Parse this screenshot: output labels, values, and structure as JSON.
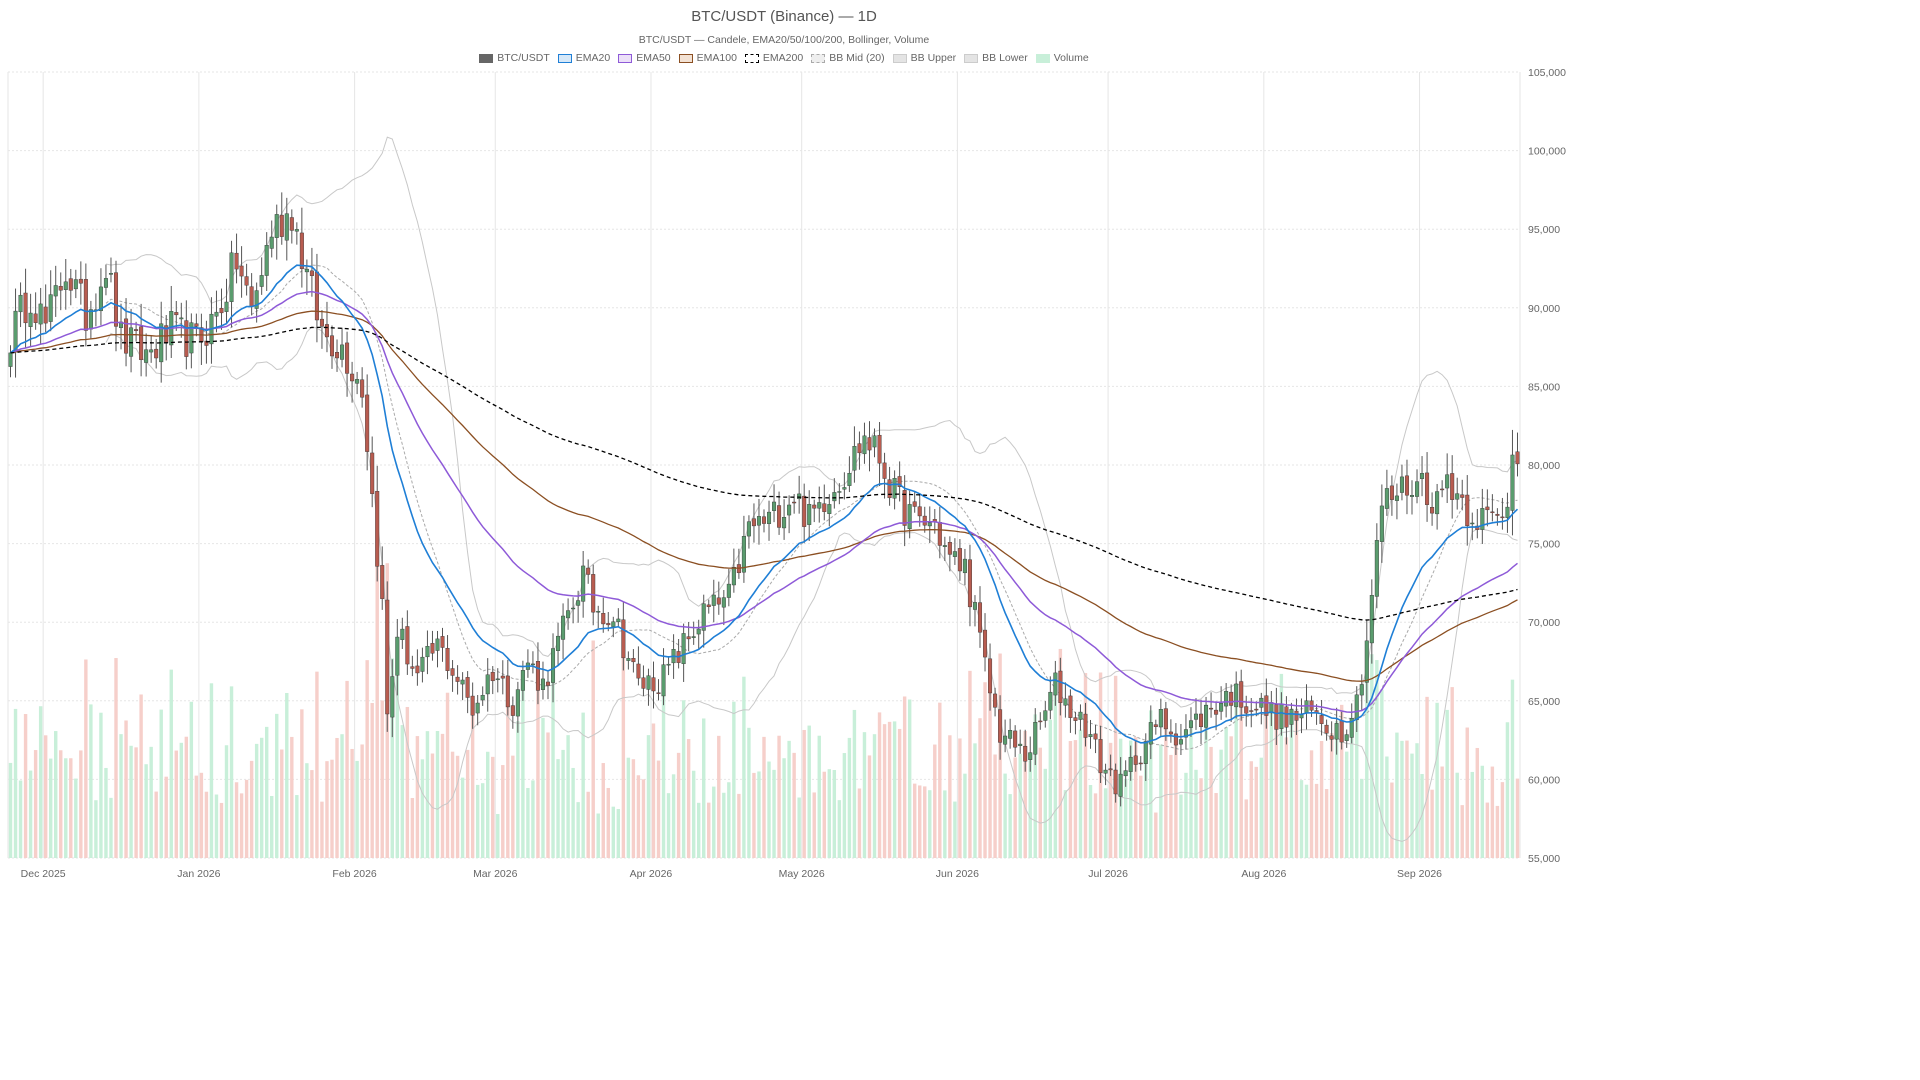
{
  "chart": {
    "title": "BTC/USDT (Binance) — 1D",
    "subtitle": "BTC/USDT — Candele, EMA20/50/100/200, Bollinger, Volume"
  },
  "legend": [
    {
      "label": "BTC/USDT",
      "fill": "#666666",
      "border": "#666666",
      "dashed": false
    },
    {
      "label": "EMA20",
      "fill": "#d6e8f8",
      "border": "#1f7fd6",
      "dashed": false
    },
    {
      "label": "EMA50",
      "fill": "#ece0f8",
      "border": "#8e5ad8",
      "dashed": false
    },
    {
      "label": "EMA100",
      "fill": "#f3e2d4",
      "border": "#8b4f22",
      "dashed": false
    },
    {
      "label": "EMA200",
      "fill": "#ffffff",
      "border": "#000000",
      "dashed": true
    },
    {
      "label": "BB Mid (20)",
      "fill": "#eeeeee",
      "border": "#aaaaaa",
      "dashed": true
    },
    {
      "label": "BB Upper",
      "fill": "#e4e4e4",
      "border": "#cccccc",
      "dashed": false
    },
    {
      "label": "BB Lower",
      "fill": "#e4e4e4",
      "border": "#cccccc",
      "dashed": false
    },
    {
      "label": "Volume",
      "fill": "#c8efd9",
      "border": "#c8efd9",
      "dashed": false
    }
  ],
  "colors": {
    "up": "#5a9c6e",
    "down": "#b85c50",
    "wick": "#555555",
    "ema20": "#1f7fd6",
    "ema50": "#8e5ad8",
    "ema100": "#8b4f22",
    "ema200": "#000000",
    "bb_band": "#c8c8c8",
    "bb_mid": "#aaaaaa",
    "vol_up": "#c8efd9",
    "vol_down": "#f6cfca",
    "grid": "#e6e6e6"
  },
  "chart_data": {
    "type": "candlestick",
    "symbol": "BTC/USDT",
    "exchange": "Binance",
    "interval": "1D",
    "start_date": "2025-11-24",
    "end_date": "2026-09-20",
    "ylim": [
      55000,
      105000
    ],
    "yticks": [
      55000,
      60000,
      65000,
      70000,
      75000,
      80000,
      85000,
      90000,
      95000,
      100000,
      105000
    ],
    "ytick_labels": [
      "55,000",
      "60,000",
      "65,000",
      "70,000",
      "75,000",
      "80,000",
      "85,000",
      "90,000",
      "95,000",
      "100,000",
      "105,000"
    ],
    "xticks": [
      "2025-12-01",
      "2026-01-01",
      "2026-02-01",
      "2026-03-01",
      "2026-04-01",
      "2026-05-01",
      "2026-06-01",
      "2026-07-01",
      "2026-08-01",
      "2026-09-01"
    ],
    "xtick_labels": [
      "Dec 2025",
      "Jan 2026",
      "Feb 2026",
      "Mar 2026",
      "Apr 2026",
      "May 2026",
      "Jun 2026",
      "Jul 2026",
      "Aug 2026",
      "Sep 2026"
    ],
    "grid": true,
    "legend_position": "top-center",
    "close_anchors": [
      [
        "2025-11-24",
        88200
      ],
      [
        "2025-11-28",
        91000
      ],
      [
        "2025-12-01",
        88800
      ],
      [
        "2025-12-05",
        92500
      ],
      [
        "2025-12-09",
        89500
      ],
      [
        "2025-12-13",
        92800
      ],
      [
        "2025-12-16",
        88000
      ],
      [
        "2025-12-21",
        87000
      ],
      [
        "2025-12-26",
        88500
      ],
      [
        "2025-12-31",
        87800
      ],
      [
        "2026-01-04",
        89500
      ],
      [
        "2026-01-08",
        93000
      ],
      [
        "2026-01-11",
        89800
      ],
      [
        "2026-01-15",
        95000
      ],
      [
        "2026-01-19",
        96200
      ],
      [
        "2026-01-22",
        92000
      ],
      [
        "2026-01-25",
        88500
      ],
      [
        "2026-01-29",
        87500
      ],
      [
        "2026-02-02",
        85000
      ],
      [
        "2026-02-04",
        78000
      ],
      [
        "2026-02-06",
        71000
      ],
      [
        "2026-02-07",
        64000
      ],
      [
        "2026-02-09",
        69500
      ],
      [
        "2026-02-13",
        66500
      ],
      [
        "2026-02-17",
        68500
      ],
      [
        "2026-02-20",
        67000
      ],
      [
        "2026-02-24",
        64500
      ],
      [
        "2026-02-28",
        67000
      ],
      [
        "2026-03-04",
        65000
      ],
      [
        "2026-03-07",
        67500
      ],
      [
        "2026-03-10",
        66000
      ],
      [
        "2026-03-14",
        69500
      ],
      [
        "2026-03-18",
        73000
      ],
      [
        "2026-03-20",
        71000
      ],
      [
        "2026-03-24",
        70500
      ],
      [
        "2026-03-29",
        66000
      ],
      [
        "2026-04-03",
        66500
      ],
      [
        "2026-04-06",
        68000
      ],
      [
        "2026-04-11",
        70500
      ],
      [
        "2026-04-16",
        71500
      ],
      [
        "2026-04-20",
        76000
      ],
      [
        "2026-04-24",
        76500
      ],
      [
        "2026-04-29",
        78200
      ],
      [
        "2026-05-02",
        76500
      ],
      [
        "2026-05-05",
        78000
      ],
      [
        "2026-05-09",
        79500
      ],
      [
        "2026-05-13",
        81800
      ],
      [
        "2026-05-16",
        80500
      ],
      [
        "2026-05-19",
        78000
      ],
      [
        "2026-05-23",
        76500
      ],
      [
        "2026-05-27",
        76200
      ],
      [
        "2026-05-30",
        74000
      ],
      [
        "2026-06-02",
        73500
      ],
      [
        "2026-06-04",
        70500
      ],
      [
        "2026-06-06",
        67000
      ],
      [
        "2026-06-09",
        63000
      ],
      [
        "2026-06-14",
        61500
      ],
      [
        "2026-06-17",
        63500
      ],
      [
        "2026-06-20",
        66000
      ],
      [
        "2026-06-23",
        64500
      ],
      [
        "2026-06-26",
        63500
      ],
      [
        "2026-06-29",
        61000
      ],
      [
        "2026-07-03",
        59500
      ],
      [
        "2026-07-06",
        61500
      ],
      [
        "2026-07-11",
        63800
      ],
      [
        "2026-07-15",
        62800
      ],
      [
        "2026-07-20",
        64300
      ],
      [
        "2026-07-25",
        65500
      ],
      [
        "2026-07-31",
        64500
      ],
      [
        "2026-08-05",
        63800
      ],
      [
        "2026-08-10",
        64200
      ],
      [
        "2026-08-13",
        63500
      ],
      [
        "2026-08-16",
        63200
      ],
      [
        "2026-08-19",
        65000
      ],
      [
        "2026-08-21",
        69000
      ],
      [
        "2026-08-24",
        77500
      ],
      [
        "2026-08-28",
        78500
      ],
      [
        "2026-09-01",
        79000
      ],
      [
        "2026-09-04",
        77500
      ],
      [
        "2026-09-06",
        79300
      ],
      [
        "2026-09-10",
        77200
      ],
      [
        "2026-09-14",
        76500
      ],
      [
        "2026-09-17",
        76500
      ],
      [
        "2026-09-18",
        78000
      ],
      [
        "2026-09-19",
        80800
      ],
      [
        "2026-09-20",
        81000
      ]
    ],
    "volume_axis_max": 100000
  }
}
